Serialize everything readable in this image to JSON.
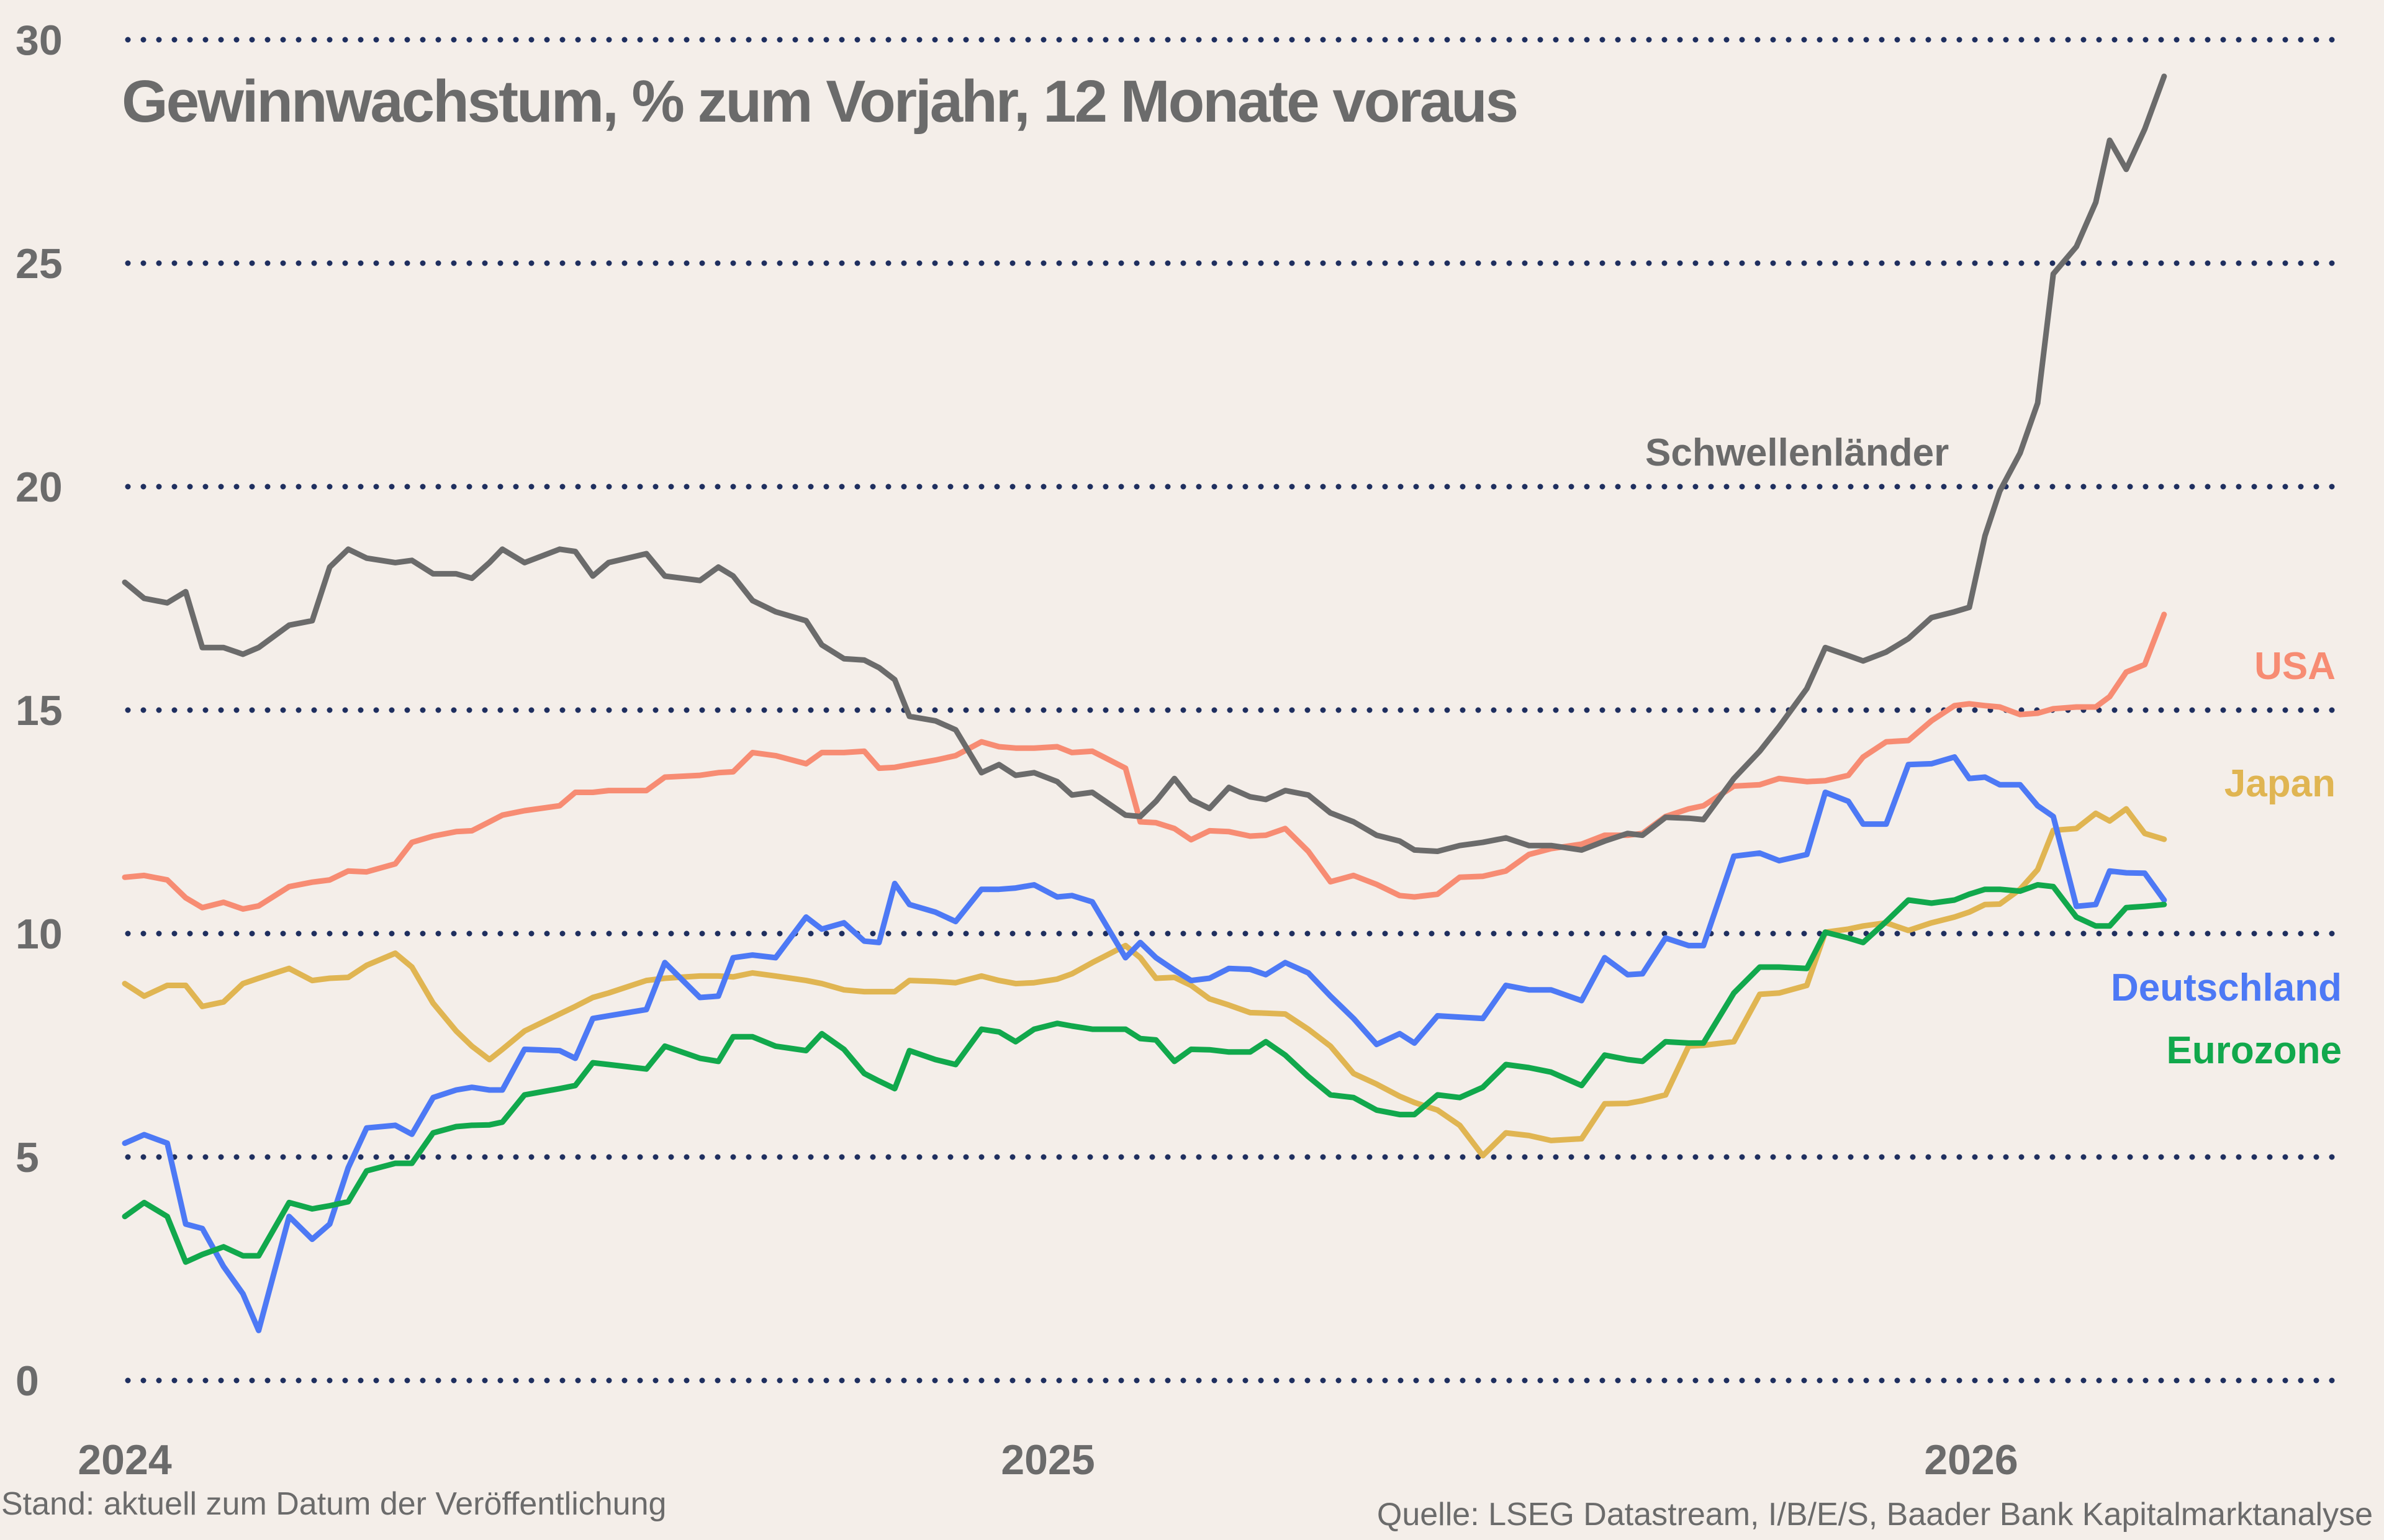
{
  "chart_data": {
    "type": "line",
    "title": "Gewinnwachstum, % zum Vorjahr, 12 Monate voraus",
    "xlabel": "",
    "ylabel": "",
    "ylim": [
      0,
      30
    ],
    "yticks": [
      "0",
      "5",
      "10",
      "15",
      "20",
      "25",
      "30"
    ],
    "xticks": [
      "2024",
      "2025",
      "2026"
    ],
    "grid": "horizontal dotted",
    "grid_color": "#1f2f5f",
    "x": [
      2024.0,
      2024.021,
      2024.046,
      2024.066,
      2024.084,
      2024.107,
      2024.128,
      2024.145,
      2024.178,
      2024.203,
      2024.222,
      2024.242,
      2024.262,
      2024.293,
      2024.311,
      2024.334,
      2024.359,
      2024.376,
      2024.395,
      2024.409,
      2024.433,
      2024.471,
      2024.488,
      2024.507,
      2024.524,
      2024.565,
      2024.585,
      2024.623,
      2024.643,
      2024.659,
      2024.68,
      2024.705,
      2024.738,
      2024.755,
      2024.779,
      2024.801,
      2024.817,
      2024.834,
      2024.85,
      2024.878,
      2024.9,
      2024.928,
      2024.947,
      2024.965,
      2024.985,
      2025.01,
      2025.026,
      2025.048,
      2025.084,
      2025.1,
      2025.117,
      2025.137,
      2025.155,
      2025.175,
      2025.196,
      2025.219,
      2025.236,
      2025.257,
      2025.282,
      2025.306,
      2025.331,
      2025.356,
      2025.381,
      2025.397,
      2025.422,
      2025.446,
      2025.471,
      2025.496,
      2025.521,
      2025.545,
      2025.578,
      2025.603,
      2025.628,
      2025.644,
      2025.669,
      2025.694,
      2025.71,
      2025.743,
      2025.771,
      2025.792,
      2025.822,
      2025.842,
      2025.867,
      2025.883,
      2025.908,
      2025.932,
      2025.957,
      2025.982,
      2025.998,
      2026.015,
      2026.031,
      2026.053,
      2026.072,
      2026.089,
      2026.114,
      2026.135,
      2026.15,
      2026.168,
      2026.188,
      2026.209
    ],
    "series": [
      {
        "name": "Schwellenländer",
        "color": "#6b6b6b",
        "values": [
          17.86,
          17.5,
          17.4,
          17.65,
          16.4,
          16.4,
          16.25,
          16.4,
          16.9,
          17.0,
          18.2,
          18.6,
          18.4,
          18.3,
          18.35,
          18.05,
          18.05,
          17.95,
          18.3,
          18.6,
          18.3,
          18.6,
          18.55,
          18.0,
          18.3,
          18.5,
          18.0,
          17.9,
          18.2,
          18.0,
          17.45,
          17.2,
          17.0,
          16.46,
          16.15,
          16.12,
          15.95,
          15.68,
          14.86,
          14.76,
          14.56,
          13.6,
          13.78,
          13.54,
          13.6,
          13.4,
          13.1,
          13.16,
          12.65,
          12.62,
          12.96,
          13.47,
          13.0,
          12.8,
          13.27,
          13.06,
          13.0,
          13.2,
          13.1,
          12.7,
          12.5,
          12.2,
          12.07,
          11.87,
          11.84,
          11.97,
          12.04,
          12.14,
          11.97,
          11.97,
          11.87,
          12.07,
          12.24,
          12.2,
          12.6,
          12.58,
          12.55,
          13.47,
          14.08,
          14.63,
          15.48,
          16.4,
          16.22,
          16.1,
          16.3,
          16.6,
          17.07,
          17.2,
          17.3,
          18.9,
          19.9,
          20.75,
          21.87,
          24.76,
          25.37,
          26.36,
          27.75,
          27.1,
          28.0,
          29.18
        ]
      },
      {
        "name": "USA",
        "color": "#f78c73",
        "values": [
          11.26,
          11.3,
          11.2,
          10.8,
          10.58,
          10.7,
          10.55,
          10.62,
          11.05,
          11.15,
          11.2,
          11.4,
          11.38,
          11.56,
          12.04,
          12.18,
          12.28,
          12.3,
          12.5,
          12.65,
          12.75,
          12.86,
          13.16,
          13.16,
          13.2,
          13.2,
          13.5,
          13.54,
          13.6,
          13.62,
          14.05,
          13.98,
          13.8,
          14.05,
          14.05,
          14.08,
          13.7,
          13.72,
          13.78,
          13.88,
          13.98,
          14.29,
          14.18,
          14.15,
          14.15,
          14.18,
          14.05,
          14.08,
          13.7,
          12.5,
          12.48,
          12.35,
          12.1,
          12.3,
          12.28,
          12.18,
          12.2,
          12.35,
          11.84,
          11.16,
          11.3,
          11.1,
          10.85,
          10.82,
          10.88,
          11.26,
          11.28,
          11.4,
          11.77,
          11.9,
          12.0,
          12.2,
          12.2,
          12.24,
          12.62,
          12.79,
          12.86,
          13.3,
          13.33,
          13.47,
          13.4,
          13.42,
          13.54,
          13.95,
          14.29,
          14.32,
          14.76,
          15.1,
          15.14,
          15.1,
          15.07,
          14.9,
          14.93,
          15.03,
          15.07,
          15.07,
          15.3,
          15.85,
          16.02,
          17.14
        ]
      },
      {
        "name": "Japan",
        "color": "#e0b552",
        "values": [
          8.88,
          8.6,
          8.84,
          8.84,
          8.37,
          8.47,
          8.88,
          9.0,
          9.22,
          8.95,
          9.0,
          9.02,
          9.29,
          9.56,
          9.25,
          8.44,
          7.82,
          7.48,
          7.18,
          7.41,
          7.82,
          8.2,
          8.37,
          8.57,
          8.67,
          8.95,
          9.0,
          9.05,
          9.05,
          9.03,
          9.12,
          9.05,
          8.95,
          8.88,
          8.74,
          8.7,
          8.7,
          8.7,
          8.95,
          8.93,
          8.9,
          9.05,
          8.95,
          8.88,
          8.9,
          8.98,
          9.1,
          9.35,
          9.73,
          9.46,
          9.0,
          9.02,
          8.84,
          8.54,
          8.4,
          8.23,
          8.22,
          8.2,
          7.86,
          7.48,
          6.87,
          6.63,
          6.36,
          6.22,
          6.05,
          5.71,
          5.03,
          5.54,
          5.48,
          5.37,
          5.41,
          6.19,
          6.2,
          6.26,
          6.39,
          7.48,
          7.5,
          7.58,
          8.64,
          8.67,
          8.84,
          10.03,
          10.1,
          10.17,
          10.24,
          10.07,
          10.24,
          10.37,
          10.48,
          10.65,
          10.66,
          10.99,
          11.43,
          12.31,
          12.35,
          12.69,
          12.52,
          12.79,
          12.24,
          12.11
        ]
      },
      {
        "name": "Deutschland",
        "color": "#4d79f5",
        "values": [
          5.31,
          5.5,
          5.31,
          3.5,
          3.4,
          2.55,
          1.94,
          1.12,
          3.67,
          3.16,
          3.5,
          4.76,
          5.65,
          5.71,
          5.51,
          6.33,
          6.5,
          6.56,
          6.5,
          6.5,
          7.41,
          7.38,
          7.21,
          8.1,
          8.16,
          8.3,
          9.35,
          8.57,
          8.6,
          9.46,
          9.52,
          9.46,
          10.37,
          10.1,
          10.24,
          9.83,
          9.8,
          11.12,
          10.65,
          10.48,
          10.27,
          10.99,
          10.99,
          11.02,
          11.09,
          10.82,
          10.85,
          10.71,
          9.46,
          9.8,
          9.46,
          9.18,
          8.95,
          9.0,
          9.22,
          9.2,
          9.08,
          9.35,
          9.12,
          8.6,
          8.1,
          7.52,
          7.76,
          7.55,
          8.16,
          8.13,
          8.1,
          8.84,
          8.74,
          8.74,
          8.5,
          9.46,
          9.08,
          9.1,
          9.9,
          9.73,
          9.73,
          11.73,
          11.8,
          11.63,
          11.77,
          13.16,
          12.96,
          12.45,
          12.45,
          13.78,
          13.8,
          13.95,
          13.47,
          13.5,
          13.33,
          13.33,
          12.86,
          12.62,
          10.61,
          10.65,
          11.4,
          11.36,
          11.35,
          10.75
        ]
      },
      {
        "name": "Eurozone",
        "color": "#11a84c",
        "values": [
          3.67,
          3.98,
          3.67,
          2.65,
          2.82,
          2.99,
          2.79,
          2.79,
          3.98,
          3.84,
          3.91,
          4.0,
          4.69,
          4.86,
          4.86,
          5.54,
          5.68,
          5.71,
          5.72,
          5.78,
          6.39,
          6.53,
          6.6,
          7.11,
          7.07,
          6.97,
          7.48,
          7.21,
          7.14,
          7.69,
          7.69,
          7.48,
          7.38,
          7.76,
          7.41,
          6.87,
          6.7,
          6.53,
          7.38,
          7.18,
          7.07,
          7.86,
          7.8,
          7.58,
          7.86,
          7.99,
          7.93,
          7.86,
          7.86,
          7.65,
          7.62,
          7.14,
          7.41,
          7.4,
          7.35,
          7.35,
          7.58,
          7.28,
          6.8,
          6.39,
          6.33,
          6.05,
          5.95,
          5.95,
          6.39,
          6.33,
          6.56,
          7.07,
          7.0,
          6.9,
          6.6,
          7.28,
          7.18,
          7.14,
          7.58,
          7.55,
          7.55,
          8.67,
          9.25,
          9.25,
          9.22,
          10.03,
          9.9,
          9.8,
          10.27,
          10.75,
          10.68,
          10.75,
          10.88,
          10.99,
          10.99,
          10.95,
          11.09,
          11.05,
          10.37,
          10.17,
          10.17,
          10.58,
          10.61,
          10.65
        ]
      }
    ],
    "legend": "inline labels at right"
  },
  "footer": {
    "left": "Stand: aktuell zum Datum der Veröffentlichung",
    "right": "Quelle: LSEG Datastream, I/B/E/S, Baader Bank Kapitalmarktanalyse"
  }
}
